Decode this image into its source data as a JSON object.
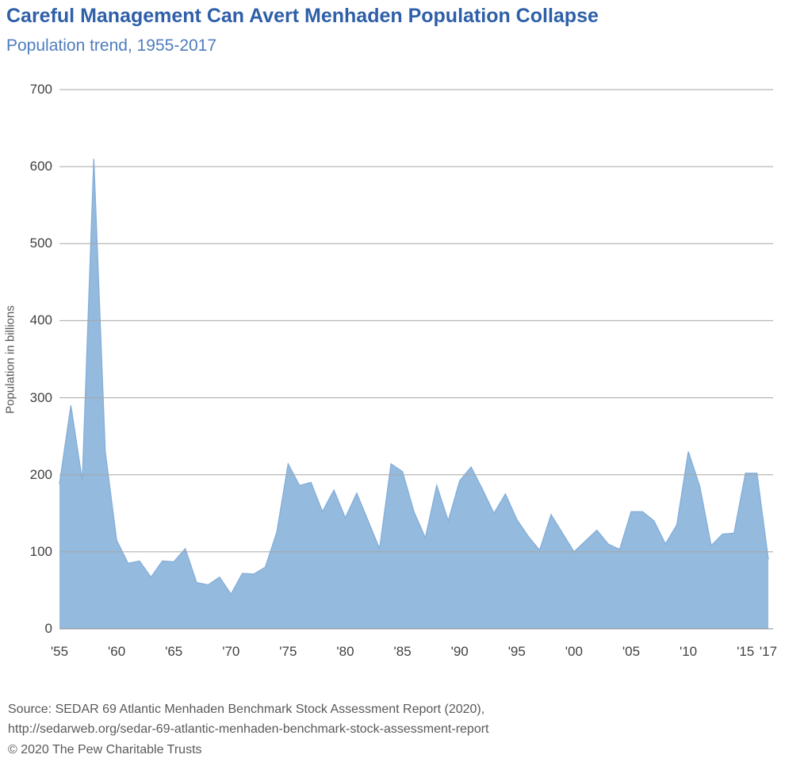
{
  "header": {
    "title": "Careful Management Can Avert Menhaden Population Collapse",
    "subtitle": "Population trend, 1955-2017"
  },
  "chart_data": {
    "type": "area",
    "title": "Careful Management Can Avert Menhaden Population Collapse",
    "subtitle": "Population trend, 1955-2017",
    "xlabel": "",
    "ylabel": "Population in billions",
    "ylim": [
      0,
      700
    ],
    "yticks": [
      0,
      100,
      200,
      300,
      400,
      500,
      600,
      700
    ],
    "grid": true,
    "legend": "none",
    "x": [
      1955,
      1956,
      1957,
      1958,
      1959,
      1960,
      1961,
      1962,
      1963,
      1964,
      1965,
      1966,
      1967,
      1968,
      1969,
      1970,
      1971,
      1972,
      1973,
      1974,
      1975,
      1976,
      1977,
      1978,
      1979,
      1980,
      1981,
      1982,
      1983,
      1984,
      1985,
      1986,
      1987,
      1988,
      1989,
      1990,
      1991,
      1992,
      1993,
      1994,
      1995,
      1996,
      1997,
      1998,
      1999,
      2000,
      2001,
      2002,
      2003,
      2004,
      2005,
      2006,
      2007,
      2008,
      2009,
      2010,
      2011,
      2012,
      2013,
      2014,
      2015,
      2016,
      2017
    ],
    "values": [
      188,
      290,
      192,
      610,
      230,
      115,
      85,
      88,
      67,
      88,
      87,
      104,
      60,
      57,
      67,
      45,
      72,
      71,
      80,
      125,
      214,
      186,
      190,
      152,
      180,
      144,
      176,
      140,
      104,
      214,
      204,
      152,
      118,
      186,
      140,
      192,
      210,
      181,
      150,
      175,
      142,
      120,
      102,
      148,
      124,
      100,
      114,
      128,
      110,
      103,
      152,
      152,
      140,
      110,
      135,
      230,
      185,
      108,
      123,
      124,
      202,
      202,
      90
    ],
    "xticks": [
      {
        "label": "'55",
        "year": 1955
      },
      {
        "label": "'60",
        "year": 1960
      },
      {
        "label": "'65",
        "year": 1965
      },
      {
        "label": "'70",
        "year": 1970
      },
      {
        "label": "'75",
        "year": 1975
      },
      {
        "label": "'80",
        "year": 1980
      },
      {
        "label": "'85",
        "year": 1985
      },
      {
        "label": "'90",
        "year": 1990
      },
      {
        "label": "'95",
        "year": 1995
      },
      {
        "label": "'00",
        "year": 2000
      },
      {
        "label": "'05",
        "year": 2005
      },
      {
        "label": "'10",
        "year": 2010
      },
      {
        "label": "'15",
        "year": 2015
      },
      {
        "label": "'17",
        "year": 2017
      }
    ]
  },
  "colors": {
    "area_fill": "#94bade",
    "area_edge": "#86afd9",
    "gridline": "#a6a6a6",
    "baseline": "#8c8c8c",
    "title": "#2e5fa8",
    "subtitle": "#4e7dbe",
    "tick_text": "#414042",
    "footer_text": "#58595b"
  },
  "footer": {
    "source_line1": "Source: SEDAR 69 Atlantic Menhaden Benchmark Stock Assessment Report (2020),",
    "source_line2": "http://sedarweb.org/sedar-69-atlantic-menhaden-benchmark-stock-assessment-report",
    "copyright": "© 2020 The Pew Charitable Trusts"
  }
}
